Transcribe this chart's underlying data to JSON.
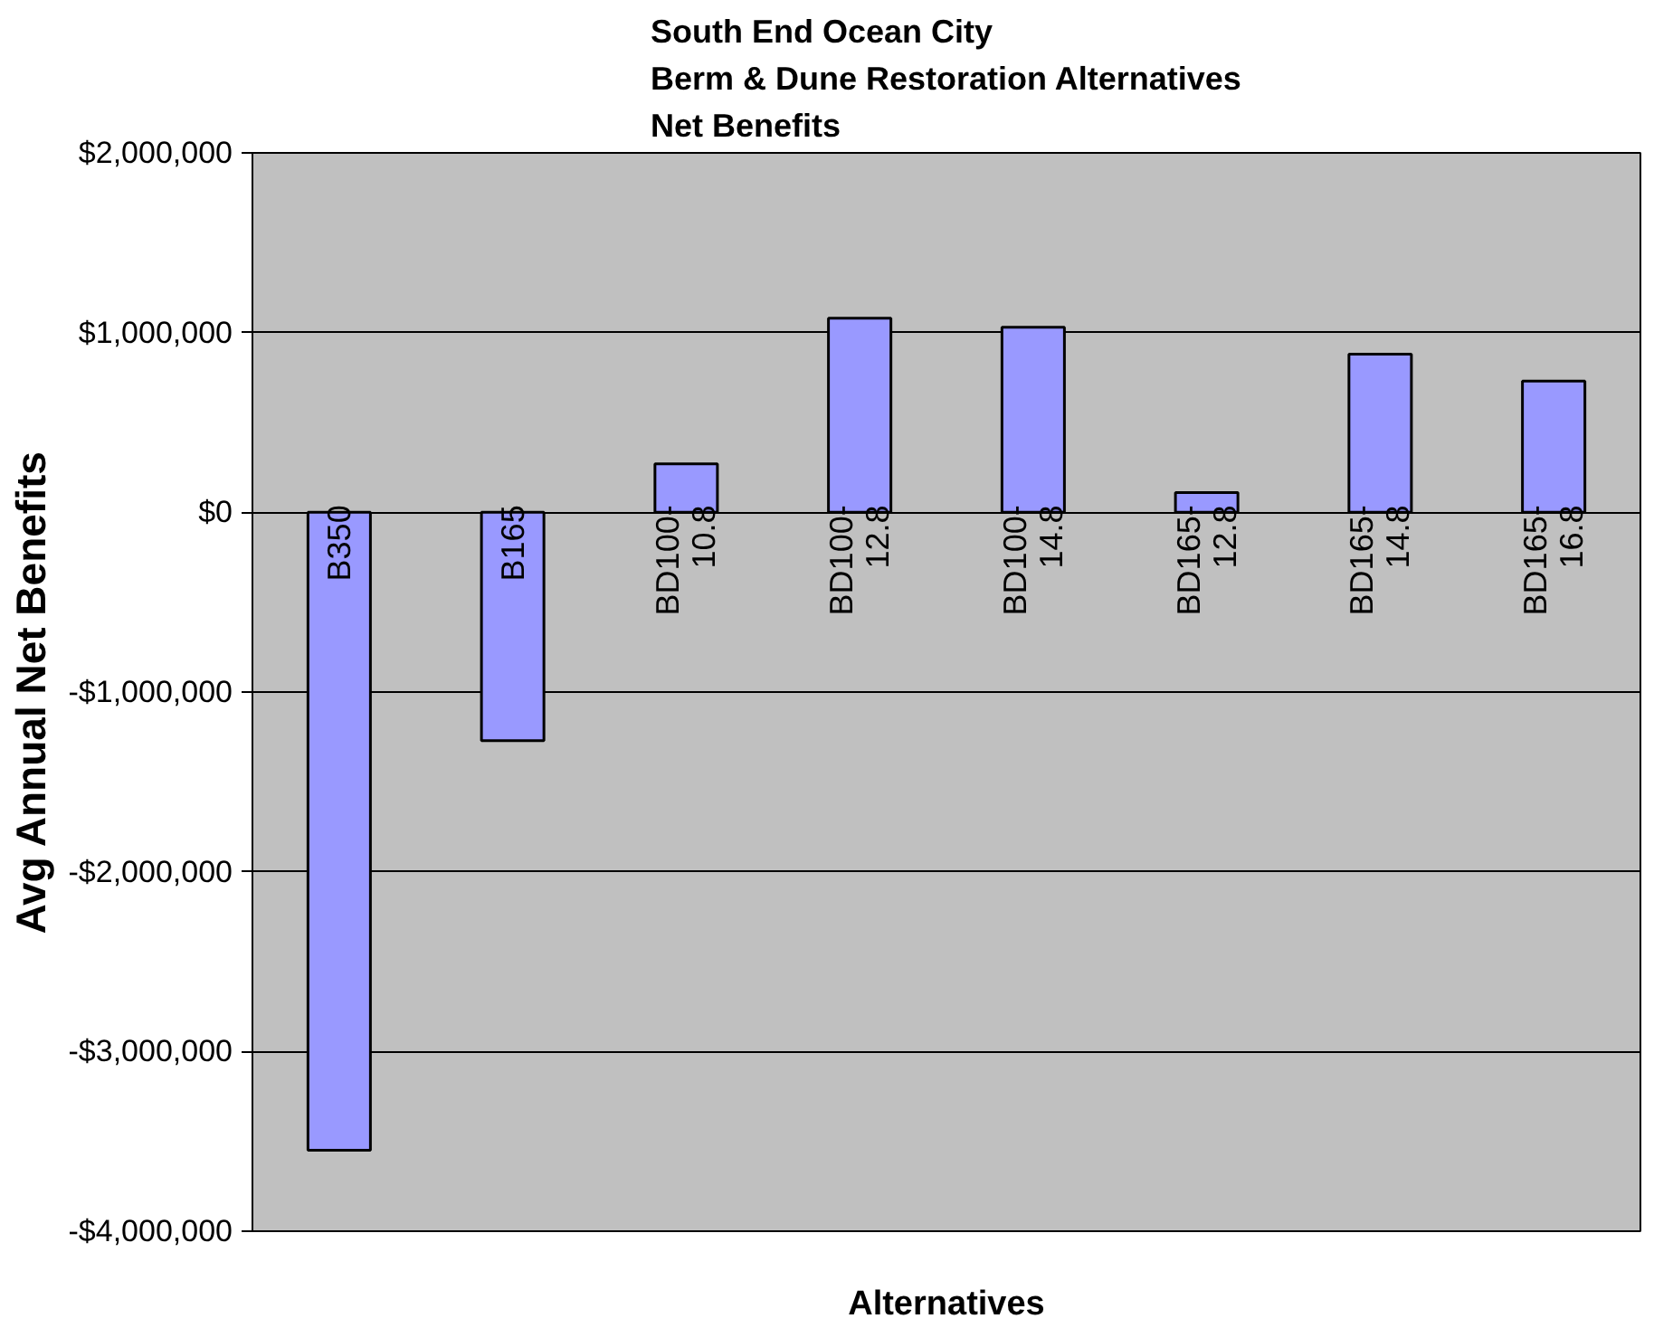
{
  "chart_data": {
    "type": "bar",
    "title": "South End Ocean City\nBerm & Dune Restoration Alternatives\nNet Benefits",
    "xlabel": "Alternatives",
    "ylabel": "Avg Annual Net Benefits",
    "categories": [
      "B350",
      "B165",
      "BD100-10.8",
      "BD100-12.8",
      "BD100-14.8",
      "BD165-12.8",
      "BD165-14.8",
      "BD165-16.8"
    ],
    "values": [
      -3550000,
      -1270000,
      270000,
      1080000,
      1030000,
      110000,
      880000,
      730000
    ],
    "color": "#9999ff",
    "ylim": [
      -4000000,
      2000000
    ],
    "yticks": [
      {
        "value": -4000000,
        "label": "-$4,000,000"
      },
      {
        "value": -3000000,
        "label": "-$3,000,000"
      },
      {
        "value": -2000000,
        "label": "-$2,000,000"
      },
      {
        "value": -1000000,
        "label": "-$1,000,000"
      },
      {
        "value": 0,
        "label": "$0"
      },
      {
        "value": 1000000,
        "label": "$1,000,000"
      },
      {
        "value": 2000000,
        "label": "$2,000,000"
      }
    ],
    "grid": "y"
  }
}
